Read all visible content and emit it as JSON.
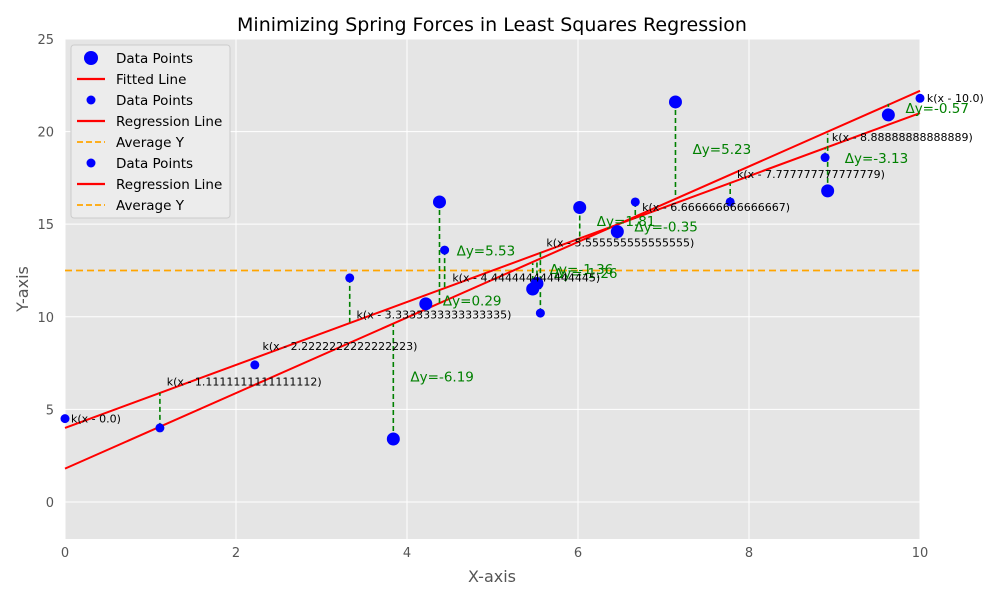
{
  "chart_data": {
    "type": "scatter",
    "title": "Minimizing Spring Forces in Least Squares Regression",
    "xlabel": "X-axis",
    "ylabel": "Y-axis",
    "xlim": [
      0,
      10
    ],
    "ylim": [
      -2,
      25
    ],
    "x_ticks": [
      "0",
      "2",
      "4",
      "6",
      "8",
      "10"
    ],
    "y_ticks": [
      "0",
      "5",
      "10",
      "15",
      "20",
      "25"
    ],
    "grid": true,
    "legend_position": "top-left",
    "colors": {
      "points": "#0000ff",
      "line": "#ff0000",
      "average": "#ffa500",
      "spring": "#008000",
      "background": "#e5e5e5"
    },
    "legend": [
      {
        "label": "Data Points",
        "kind": "point-large"
      },
      {
        "label": "Fitted Line",
        "kind": "line"
      },
      {
        "label": "Data Points",
        "kind": "point"
      },
      {
        "label": "Regression Line",
        "kind": "line"
      },
      {
        "label": "Average Y",
        "kind": "dashed"
      },
      {
        "label": "Data Points",
        "kind": "point"
      },
      {
        "label": "Regression Line",
        "kind": "line"
      },
      {
        "label": "Average Y",
        "kind": "dashed"
      }
    ],
    "series": [
      {
        "name": "Data Points",
        "marker": "large",
        "x": [
          3.84,
          4.22,
          4.38,
          5.47,
          5.52,
          6.02,
          6.46,
          7.14,
          8.92,
          9.63
        ],
        "y": [
          3.4,
          10.7,
          16.2,
          11.5,
          11.8,
          15.9,
          14.6,
          21.6,
          16.8,
          20.9
        ]
      },
      {
        "name": "Data Points",
        "marker": "small",
        "x": [
          0.0,
          1.11,
          2.22,
          3.33,
          4.44,
          5.56,
          6.67,
          7.78,
          8.89,
          10.0
        ],
        "y": [
          4.5,
          4.0,
          7.4,
          12.1,
          13.6,
          10.2,
          16.2,
          16.2,
          18.6,
          21.8
        ]
      }
    ],
    "lines": [
      {
        "name": "Fitted Line",
        "x": [
          0,
          10
        ],
        "y": [
          1.8,
          22.2
        ]
      },
      {
        "name": "Regression Line",
        "x": [
          0,
          10
        ],
        "y": [
          4.0,
          21.0
        ]
      }
    ],
    "average_y": 12.5,
    "springs": [
      {
        "x": 3.84,
        "y_from": 3.4,
        "y_to": 9.6
      },
      {
        "x": 4.22,
        "y_from": 10.7,
        "y_to": 10.4
      },
      {
        "x": 4.38,
        "y_from": 16.2,
        "y_to": 10.7
      },
      {
        "x": 5.47,
        "y_from": 11.5,
        "y_to": 12.9
      },
      {
        "x": 5.52,
        "y_from": 11.8,
        "y_to": 13.1
      },
      {
        "x": 6.02,
        "y_from": 15.9,
        "y_to": 14.1
      },
      {
        "x": 6.46,
        "y_from": 14.6,
        "y_to": 15.0
      },
      {
        "x": 7.14,
        "y_from": 21.6,
        "y_to": 16.4
      },
      {
        "x": 8.92,
        "y_from": 16.8,
        "y_to": 19.9
      },
      {
        "x": 9.63,
        "y_from": 20.9,
        "y_to": 21.5
      },
      {
        "x": 1.11,
        "y_from": 4.0,
        "y_to": 5.9
      },
      {
        "x": 3.33,
        "y_from": 12.1,
        "y_to": 9.7
      },
      {
        "x": 4.44,
        "y_from": 13.6,
        "y_to": 11.6
      },
      {
        "x": 5.56,
        "y_from": 10.2,
        "y_to": 13.5
      },
      {
        "x": 6.67,
        "y_from": 16.2,
        "y_to": 15.3
      },
      {
        "x": 7.78,
        "y_from": 16.2,
        "y_to": 17.2
      },
      {
        "x": 8.89,
        "y_from": 18.6,
        "y_to": 19.1
      }
    ],
    "dy_annotations": [
      {
        "text": "Δy=-6.19",
        "x": 4.04,
        "y": 6.5
      },
      {
        "text": "Δy=0.29",
        "x": 4.42,
        "y": 10.6
      },
      {
        "text": "Δy=5.53",
        "x": 4.58,
        "y": 13.3
      },
      {
        "text": "Δy=-1.36",
        "x": 5.67,
        "y": 12.3
      },
      {
        "text": "Δy=-1.26",
        "x": 5.72,
        "y": 12.1
      },
      {
        "text": "Δy=1.81",
        "x": 6.22,
        "y": 14.9
      },
      {
        "text": "Δy=-0.35",
        "x": 6.66,
        "y": 14.6
      },
      {
        "text": "Δy=5.23",
        "x": 7.34,
        "y": 18.8
      },
      {
        "text": "Δy=-3.13",
        "x": 9.12,
        "y": 18.3
      },
      {
        "text": "Δy=-0.57",
        "x": 9.83,
        "y": 21.0
      }
    ],
    "k_annotations": [
      {
        "text": "k(x - 0.0)",
        "x": 0.07,
        "y": 4.3
      },
      {
        "text": "k(x - 1.1111111111111112)",
        "x": 1.19,
        "y": 6.3
      },
      {
        "text": "k(x - 2.2222222222222223)",
        "x": 2.31,
        "y": 8.2
      },
      {
        "text": "k(x - 3.3333333333333335)",
        "x": 3.41,
        "y": 9.9
      },
      {
        "text": "k(x - 4.444444444444445)",
        "x": 4.53,
        "y": 11.9
      },
      {
        "text": "k(x - 5.555555555555555)",
        "x": 5.63,
        "y": 13.8
      },
      {
        "text": "k(x - 6.666666666666667)",
        "x": 6.75,
        "y": 15.7
      },
      {
        "text": "k(x - 7.777777777777779)",
        "x": 7.86,
        "y": 17.5
      },
      {
        "text": "k(x - 8.88888888888889)",
        "x": 8.97,
        "y": 19.5
      },
      {
        "text": "k(x - 10.0)",
        "x": 10.08,
        "y": 21.6
      }
    ]
  }
}
